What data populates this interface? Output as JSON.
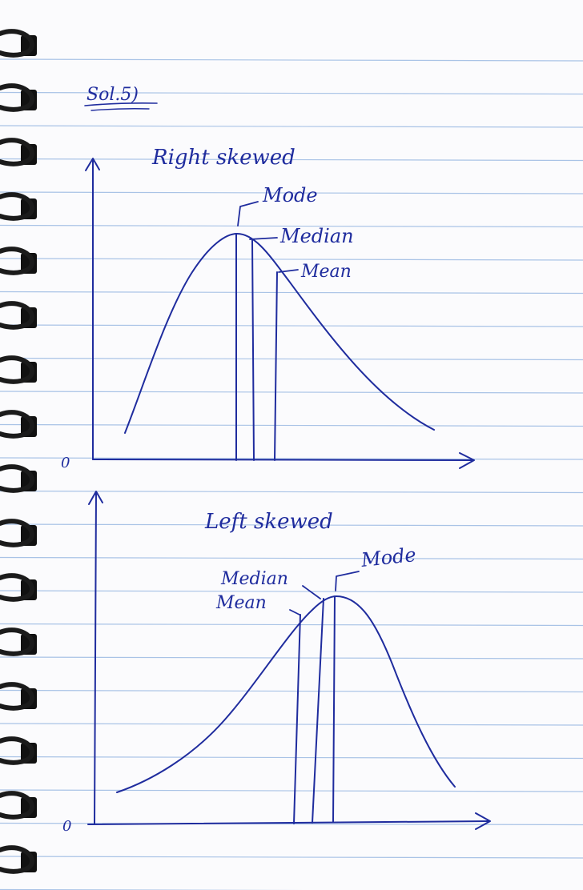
{
  "header": {
    "label": "Sol.5)"
  },
  "diagram_top": {
    "title": "Right skewed",
    "origin": "0",
    "labels": {
      "mode": "Mode",
      "median": "Median",
      "mean": "Mean"
    }
  },
  "diagram_bottom": {
    "title": "Left skewed",
    "origin": "0",
    "labels": {
      "mode": "Mode",
      "median": "Median",
      "mean": "Mean"
    }
  },
  "colors": {
    "ink": "#1f2c9e",
    "paper": "#fbfbfd",
    "rule": "#a9c3e6",
    "spiral": "#1b1b1b"
  }
}
